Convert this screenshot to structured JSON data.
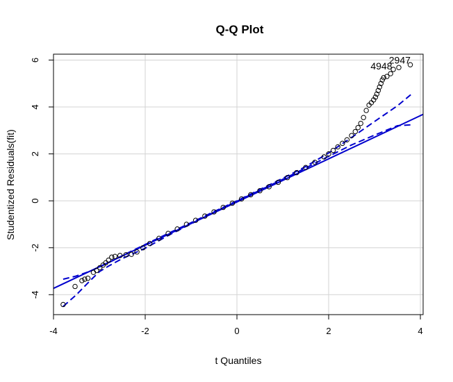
{
  "chart_data": {
    "type": "scatter",
    "title": "Q-Q Plot",
    "xlabel": "t Quantiles",
    "ylabel": "Studentized Residuals(fit)",
    "xlim": [
      -4.0,
      4.06
    ],
    "ylim": [
      -4.85,
      6.25
    ],
    "xticks": [
      -4,
      -2,
      0,
      2,
      4
    ],
    "yticks": [
      -4,
      -2,
      0,
      2,
      4,
      6
    ],
    "xtick_labels": [
      "-4",
      "-2",
      "0",
      "2",
      "4"
    ],
    "ytick_labels": [
      "-4",
      "-2",
      "0",
      "2",
      "4",
      "6"
    ],
    "grid": true,
    "colors": {
      "points": "#000000",
      "reference_line": "#0000cd",
      "envelope": "#0000cd",
      "grid": "#d3d3d3"
    },
    "points": [
      [
        -3.79,
        -4.42
      ],
      [
        -3.53,
        -3.65
      ],
      [
        -3.38,
        -3.4
      ],
      [
        -3.32,
        -3.34
      ],
      [
        -3.25,
        -3.3
      ],
      [
        -3.13,
        -3.05
      ],
      [
        -3.06,
        -2.97
      ],
      [
        -2.99,
        -2.85
      ],
      [
        -2.92,
        -2.74
      ],
      [
        -2.86,
        -2.64
      ],
      [
        -2.8,
        -2.53
      ],
      [
        -2.73,
        -2.4
      ],
      [
        -2.66,
        -2.37
      ],
      [
        -2.55,
        -2.33
      ],
      [
        -2.42,
        -2.3
      ],
      [
        -2.3,
        -2.28
      ],
      [
        -2.18,
        -2.18
      ],
      [
        -2.05,
        -2.0
      ],
      [
        -1.9,
        -1.82
      ],
      [
        -1.7,
        -1.6
      ],
      [
        -1.5,
        -1.39
      ],
      [
        -1.3,
        -1.2
      ],
      [
        -1.1,
        -1.0
      ],
      [
        -0.9,
        -0.83
      ],
      [
        -0.7,
        -0.65
      ],
      [
        -0.5,
        -0.47
      ],
      [
        -0.3,
        -0.28
      ],
      [
        -0.1,
        -0.1
      ],
      [
        0.1,
        0.08
      ],
      [
        0.3,
        0.26
      ],
      [
        0.5,
        0.43
      ],
      [
        0.7,
        0.6
      ],
      [
        0.9,
        0.79
      ],
      [
        1.1,
        0.99
      ],
      [
        1.3,
        1.2
      ],
      [
        1.5,
        1.42
      ],
      [
        1.7,
        1.64
      ],
      [
        1.9,
        1.87
      ],
      [
        2.0,
        2.0
      ],
      [
        2.1,
        2.15
      ],
      [
        2.2,
        2.3
      ],
      [
        2.3,
        2.45
      ],
      [
        2.4,
        2.6
      ],
      [
        2.5,
        2.78
      ],
      [
        2.58,
        2.95
      ],
      [
        2.64,
        3.12
      ],
      [
        2.7,
        3.3
      ],
      [
        2.76,
        3.55
      ],
      [
        2.82,
        3.85
      ],
      [
        2.88,
        4.08
      ],
      [
        2.93,
        4.18
      ],
      [
        2.98,
        4.3
      ],
      [
        3.02,
        4.42
      ],
      [
        3.05,
        4.55
      ],
      [
        3.08,
        4.7
      ],
      [
        3.11,
        4.85
      ],
      [
        3.14,
        5.0
      ],
      [
        3.17,
        5.15
      ],
      [
        3.2,
        5.25
      ],
      [
        3.27,
        5.3
      ],
      [
        3.35,
        5.42
      ],
      [
        3.41,
        5.6
      ],
      [
        3.53,
        5.68
      ],
      [
        3.78,
        5.8
      ]
    ],
    "reference_line": {
      "intercept": -0.05,
      "slope": 0.92
    },
    "envelope_upper": [
      [
        -3.79,
        -3.34
      ],
      [
        -3.53,
        -3.22
      ],
      [
        -3.2,
        -3.0
      ],
      [
        -2.8,
        -2.64
      ],
      [
        -2.4,
        -2.24
      ],
      [
        -2.0,
        -1.86
      ],
      [
        -1.5,
        -1.39
      ],
      [
        -1.0,
        -0.93
      ],
      [
        -0.5,
        -0.46
      ],
      [
        0.0,
        0.0
      ],
      [
        0.5,
        0.48
      ],
      [
        1.0,
        0.96
      ],
      [
        1.5,
        1.46
      ],
      [
        2.0,
        2.04
      ],
      [
        2.5,
        2.7
      ],
      [
        3.0,
        3.38
      ],
      [
        3.5,
        4.05
      ],
      [
        3.79,
        4.52
      ]
    ],
    "envelope_lower": [
      [
        -3.79,
        -4.5
      ],
      [
        -3.5,
        -4.0
      ],
      [
        -3.2,
        -3.4
      ],
      [
        -3.0,
        -3.02
      ],
      [
        -2.8,
        -2.78
      ],
      [
        -2.5,
        -2.46
      ],
      [
        -2.0,
        -2.02
      ],
      [
        -1.5,
        -1.48
      ],
      [
        -1.0,
        -0.98
      ],
      [
        -0.5,
        -0.49
      ],
      [
        0.0,
        -0.02
      ],
      [
        0.5,
        0.45
      ],
      [
        1.0,
        0.92
      ],
      [
        1.5,
        1.4
      ],
      [
        2.0,
        1.9
      ],
      [
        2.5,
        2.38
      ],
      [
        3.0,
        2.8
      ],
      [
        3.5,
        3.2
      ],
      [
        3.79,
        3.24
      ]
    ],
    "annotations": [
      {
        "text": "2947",
        "x": 3.55,
        "y": 5.85
      },
      {
        "text": "4948",
        "x": 3.15,
        "y": 5.6
      }
    ]
  }
}
